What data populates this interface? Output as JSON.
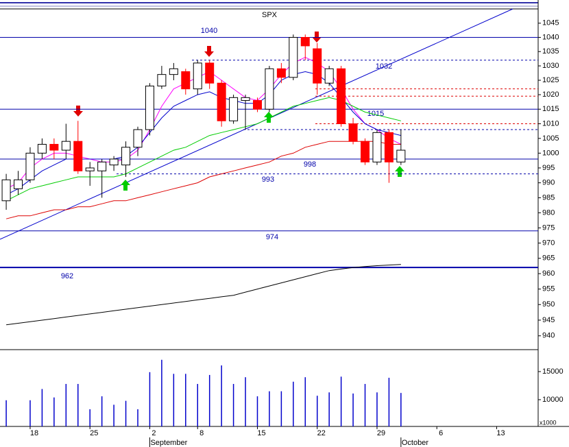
{
  "chart_data": [
    {
      "type": "candlestick",
      "title": "SPX",
      "log_scale": true,
      "ylim": [
        935.6,
        1050.8
      ],
      "yticks": [
        940,
        945,
        950,
        955,
        960,
        965,
        970,
        975,
        980,
        985,
        990,
        995,
        1000,
        1005,
        1010,
        1015,
        1020,
        1025,
        1030,
        1035,
        1040,
        1045
      ],
      "xlim": [
        -0.52,
        44.47
      ],
      "xticks": [
        {
          "value": 2,
          "label": "18"
        },
        {
          "value": 7,
          "label": "25"
        },
        {
          "value": 12,
          "label": "2"
        },
        {
          "value": 16,
          "label": "8"
        },
        {
          "value": 21,
          "label": "15"
        },
        {
          "value": 26,
          "label": "22"
        },
        {
          "value": 31,
          "label": "29"
        },
        {
          "value": 36,
          "label": "6"
        },
        {
          "value": 41,
          "label": "13"
        }
      ],
      "months": [
        {
          "value": 12,
          "label": "September"
        },
        {
          "value": 33,
          "label": "October"
        }
      ],
      "up_color": "#ffffff",
      "down_color": "#ff0000",
      "open": [
        984,
        988,
        991,
        1000,
        1003,
        1001,
        1004,
        994,
        994,
        996,
        996,
        1002,
        1008,
        1023,
        1027,
        1028,
        1022,
        1031,
        1024,
        1011,
        1018,
        1018,
        1015,
        1029,
        1026,
        1040,
        1036,
        1024,
        1029,
        1010,
        1004,
        997,
        1007,
        997
      ],
      "high": [
        993,
        994,
        1002,
        1005,
        1005,
        1010,
        1011,
        997,
        998,
        999,
        1004,
        1009,
        1024,
        1030,
        1031,
        1029,
        1032,
        1032,
        1025,
        1020,
        1020,
        1019,
        1030,
        1031,
        1041,
        1041,
        1038,
        1030,
        1030,
        1012,
        1005,
        1008,
        1008,
        1008
      ],
      "low": [
        981,
        986,
        990,
        998,
        998,
        998,
        993,
        989,
        985,
        994,
        992,
        999,
        1006,
        1022,
        1025,
        1020,
        1020,
        1022,
        1009,
        1010,
        1008,
        1014,
        1014,
        1024,
        1025,
        1032,
        1020,
        1023,
        1009,
        1003,
        996,
        996,
        990,
        996
      ],
      "close": [
        991,
        991,
        1000,
        1003,
        1001,
        1004,
        994,
        995,
        997,
        998,
        1002,
        1008,
        1023,
        1027,
        1029,
        1022,
        1031,
        1024,
        1011,
        1019,
        1019,
        1015,
        1029,
        1026,
        1040,
        1037,
        1024,
        1029,
        1010,
        1004,
        997,
        1007,
        997,
        1001
      ],
      "series": [
        {
          "color": "#ff00ff",
          "values": [
            988,
            990,
            995,
            998,
            1000,
            1000,
            999,
            998,
            997,
            997,
            998,
            1001,
            1008,
            1016,
            1022,
            1024,
            1026,
            1028,
            1025,
            1022,
            1019,
            1018,
            1022,
            1027,
            1031,
            1033,
            1031,
            1028,
            1022,
            1015,
            1010,
            1008,
            1005,
            1003
          ]
        },
        {
          "color": "#0000cc",
          "values": [
            986,
            988,
            991,
            994,
            996,
            998,
            998,
            998,
            998,
            998,
            999,
            1002,
            1007,
            1012,
            1016,
            1018,
            1020,
            1021,
            1019,
            1018,
            1017,
            1017,
            1020,
            1025,
            1027,
            1028,
            1027,
            1024,
            1019,
            1014,
            1010,
            1008,
            1007,
            1006
          ]
        },
        {
          "color": "#00cc00",
          "values": [
            984,
            986,
            988,
            989,
            990,
            991,
            992,
            992,
            992,
            992,
            993,
            995,
            997,
            999,
            1001,
            1002,
            1004,
            1006,
            1007,
            1008,
            1009,
            1010,
            1012,
            1014,
            1016,
            1017,
            1018,
            1019,
            1018,
            1016,
            1014,
            1013,
            1012,
            1011
          ]
        },
        {
          "color": "#dd0000",
          "values": [
            978,
            979,
            979,
            980,
            981,
            981,
            982,
            982,
            983,
            984,
            984,
            985,
            986,
            987,
            988,
            989,
            990,
            992,
            993,
            994,
            995,
            996,
            997,
            999,
            1000,
            1002,
            1003,
            1004,
            1004,
            1004,
            1004,
            1004,
            1003,
            1003
          ]
        },
        {
          "color": "#000000",
          "values": [
            943.5,
            944,
            944.5,
            945,
            945.5,
            946,
            946.5,
            947,
            947.5,
            948,
            948.5,
            949,
            949.5,
            950,
            950.5,
            951,
            951.5,
            952,
            952.5,
            953,
            954,
            955,
            956,
            957,
            958,
            959,
            960,
            961,
            961.5,
            962,
            962.3,
            962.6,
            962.8,
            963
          ]
        }
      ],
      "levels": [
        {
          "value": 1040,
          "label": "1040",
          "color": "#0000aa",
          "style": "solid"
        },
        {
          "value": 1032,
          "label": "1032",
          "color": "#0000aa",
          "style": "dashed"
        },
        {
          "value": 1022,
          "label": null,
          "color": "#dd0000",
          "style": "dashed"
        },
        {
          "value": 1019.5,
          "label": null,
          "color": "#dd0000",
          "style": "dashed"
        },
        {
          "value": 1015,
          "label": "1015",
          "color": "#0000aa",
          "style": "solid"
        },
        {
          "value": 1010,
          "label": null,
          "color": "#dd0000",
          "style": "dashed"
        },
        {
          "value": 1008,
          "label": null,
          "color": "#0000aa",
          "style": "dashed"
        },
        {
          "value": 998,
          "label": "998",
          "color": "#0000aa",
          "style": "solid"
        },
        {
          "value": 993,
          "label": "993",
          "color": "#0000aa",
          "style": "dashed"
        },
        {
          "value": 974,
          "label": "974",
          "color": "#0000aa",
          "style": "solid"
        },
        {
          "value": 962,
          "label": "962",
          "color": "#0000aa",
          "style": "thick"
        }
      ]
    },
    {
      "type": "bar",
      "unit_label": "x1000",
      "color": "#0000cc",
      "ylim": [
        5240,
        18660
      ],
      "yticks": [
        10000,
        15000
      ],
      "values": [
        9900,
        null,
        9900,
        11900,
        10400,
        12800,
        12800,
        8300,
        10600,
        9100,
        9800,
        8300,
        14900,
        17100,
        14600,
        14600,
        12800,
        14400,
        16100,
        12800,
        14000,
        10600,
        11500,
        11500,
        13200,
        14000,
        10700,
        11300,
        14100,
        11100,
        12800,
        11300,
        13900,
        11200
      ]
    }
  ]
}
